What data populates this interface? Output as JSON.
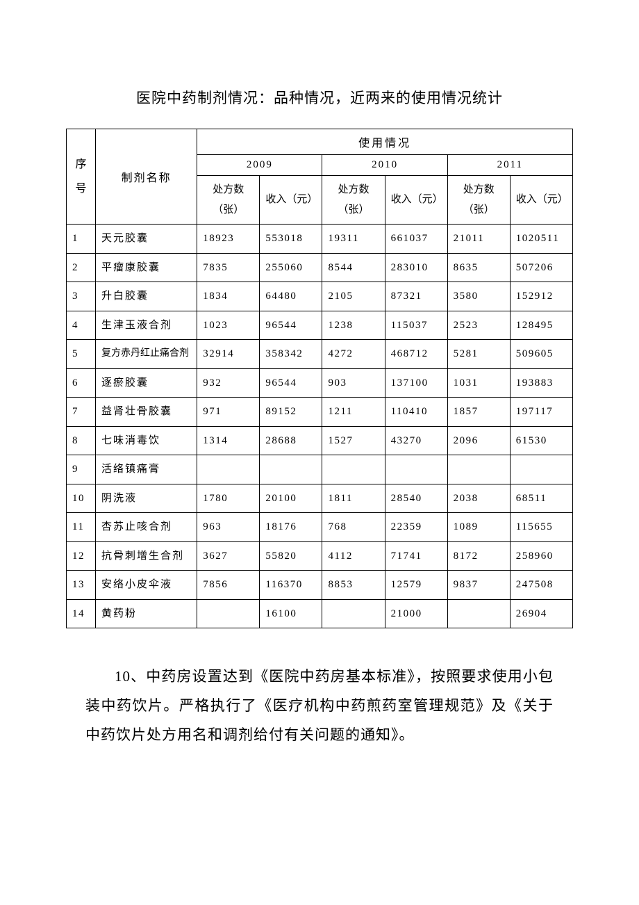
{
  "title": "医院中药制剂情况：品种情况，近两来的使用情况统计",
  "table": {
    "headers": {
      "seq": "序号",
      "name": "制剂名称",
      "usage": "使用情况",
      "years": [
        "2009",
        "2010",
        "2011"
      ],
      "sub_rx": "处方数（张）",
      "sub_income": "收入（元）"
    },
    "columns_count": 8,
    "rows": [
      {
        "seq": "1",
        "name": "天元胶囊",
        "name_cls": "td-name",
        "y2009_rx": "18923",
        "y2009_in": "553018",
        "y2010_rx": "19311",
        "y2010_in": "661037",
        "y2011_rx": "21011",
        "y2011_in": "1020511"
      },
      {
        "seq": "2",
        "name": "平瘤康胶囊",
        "name_cls": "td-name",
        "y2009_rx": "7835",
        "y2009_in": "255060",
        "y2010_rx": "8544",
        "y2010_in": "283010",
        "y2011_rx": "8635",
        "y2011_in": "507206"
      },
      {
        "seq": "3",
        "name": "升白胶囊",
        "name_cls": "td-name",
        "y2009_rx": "1834",
        "y2009_in": "64480",
        "y2010_rx": "2105",
        "y2010_in": "87321",
        "y2011_rx": "3580",
        "y2011_in": "152912"
      },
      {
        "seq": "4",
        "name": "生津玉液合剂",
        "name_cls": "td-name",
        "y2009_rx": "1023",
        "y2009_in": "96544",
        "y2010_rx": "1238",
        "y2010_in": "115037",
        "y2011_rx": "2523",
        "y2011_in": "128495"
      },
      {
        "seq": "5",
        "name": "复方赤丹红止痛合剂",
        "name_cls": "td-name-small",
        "y2009_rx": "32914",
        "y2009_in": "358342",
        "y2010_rx": "4272",
        "y2010_in": "468712",
        "y2011_rx": "5281",
        "y2011_in": "509605"
      },
      {
        "seq": "6",
        "name": "逐瘀胶囊",
        "name_cls": "td-name",
        "y2009_rx": "932",
        "y2009_in": "96544",
        "y2010_rx": "903",
        "y2010_in": "137100",
        "y2011_rx": "1031",
        "y2011_in": "193883"
      },
      {
        "seq": "7",
        "name": "益肾壮骨胶囊",
        "name_cls": "td-name",
        "y2009_rx": "971",
        "y2009_in": "89152",
        "y2010_rx": "1211",
        "y2010_in": "110410",
        "y2011_rx": "1857",
        "y2011_in": "197117"
      },
      {
        "seq": "8",
        "name": "七味消毒饮",
        "name_cls": "td-name",
        "y2009_rx": "1314",
        "y2009_in": "28688",
        "y2010_rx": "1527",
        "y2010_in": "43270",
        "y2011_rx": "2096",
        "y2011_in": "61530"
      },
      {
        "seq": "9",
        "name": "活络镇痛膏",
        "name_cls": "td-name",
        "y2009_rx": "",
        "y2009_in": "",
        "y2010_rx": "",
        "y2010_in": "",
        "y2011_rx": "",
        "y2011_in": ""
      },
      {
        "seq": "10",
        "name": "阴洗液",
        "name_cls": "td-name",
        "y2009_rx": "1780",
        "y2009_in": "20100",
        "y2010_rx": "1811",
        "y2010_in": "28540",
        "y2011_rx": "2038",
        "y2011_in": "68511"
      },
      {
        "seq": "11",
        "name": "杏苏止咳合剂",
        "name_cls": "td-name",
        "y2009_rx": "963",
        "y2009_in": "18176",
        "y2010_rx": "768",
        "y2010_in": "22359",
        "y2011_rx": "1089",
        "y2011_in": "115655"
      },
      {
        "seq": "12",
        "name": "抗骨刺增生合剂",
        "name_cls": "td-name",
        "y2009_rx": "3627",
        "y2009_in": "55820",
        "y2010_rx": "4112",
        "y2010_in": "71741",
        "y2011_rx": "8172",
        "y2011_in": "258960"
      },
      {
        "seq": "13",
        "name": "安络小皮伞液",
        "name_cls": "td-name",
        "y2009_rx": "7856",
        "y2009_in": "116370",
        "y2010_rx": "8853",
        "y2010_in": "12579",
        "y2011_rx": "9837",
        "y2011_in": "247508"
      },
      {
        "seq": "14",
        "name": "黄药粉",
        "name_cls": "td-name",
        "y2009_rx": "",
        "y2009_in": "16100",
        "y2010_rx": "",
        "y2010_in": "21000",
        "y2011_rx": "",
        "y2011_in": "26904"
      }
    ]
  },
  "paragraph": "10、中药房设置达到《医院中药房基本标准》，按照要求使用小包装中药饮片。严格执行了《医疗机构中药煎药室管理规范》及《关于中药饮片处方用名和调剂给付有关问题的通知》。",
  "style": {
    "background_color": "#ffffff",
    "text_color": "#000000",
    "border_color": "#000000",
    "title_fontsize": 21,
    "body_fontsize": 21,
    "table_fontsize": 15,
    "font_family": "SimSun"
  }
}
